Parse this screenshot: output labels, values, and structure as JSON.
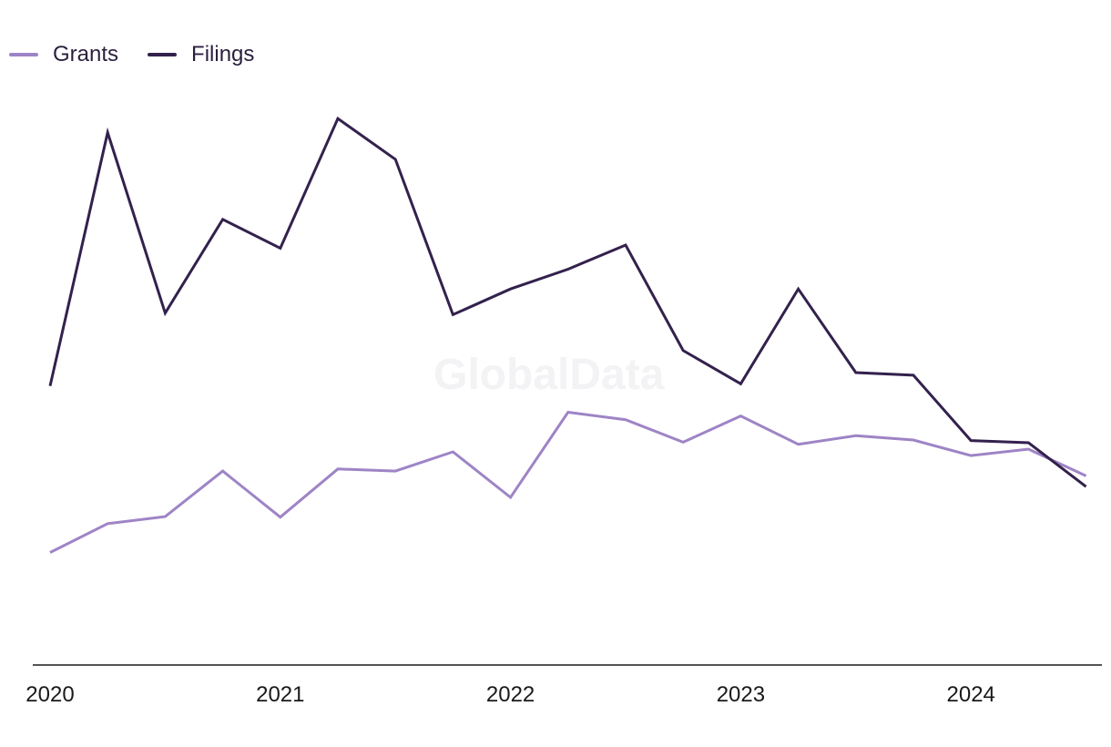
{
  "watermark": "GlobalData",
  "chart_data": {
    "type": "line",
    "title": "",
    "xlabel": "",
    "ylabel": "",
    "x": [
      "2020-Q1",
      "2020-Q2",
      "2020-Q3",
      "2020-Q4",
      "2021-Q1",
      "2021-Q2",
      "2021-Q3",
      "2021-Q4",
      "2022-Q1",
      "2022-Q2",
      "2022-Q3",
      "2022-Q4",
      "2023-Q1",
      "2023-Q2",
      "2023-Q3",
      "2023-Q4",
      "2024-Q1",
      "2024-Q2",
      "2024-Q3"
    ],
    "x_tick_labels": [
      "2020",
      "2021",
      "2022",
      "2023",
      "2024"
    ],
    "ylim": [
      0,
      100
    ],
    "grid": false,
    "legend_position": "top-left",
    "series": [
      {
        "name": "Grants",
        "color": "#9e84c6",
        "values": [
          21,
          26.4,
          27.7,
          36.2,
          27.6,
          36.6,
          36.2,
          39.8,
          31.3,
          47.2,
          45.8,
          41.6,
          46.5,
          41.2,
          42.8,
          42,
          39.1,
          40.3,
          35.3
        ]
      },
      {
        "name": "Filings",
        "color": "#33214d",
        "values": [
          52.1,
          99.4,
          65.7,
          83.2,
          77.8,
          102,
          94.4,
          65.4,
          70.2,
          73.9,
          78.4,
          58.7,
          52.5,
          70.2,
          54.6,
          54.1,
          41.9,
          41.5,
          33.3
        ]
      }
    ]
  }
}
